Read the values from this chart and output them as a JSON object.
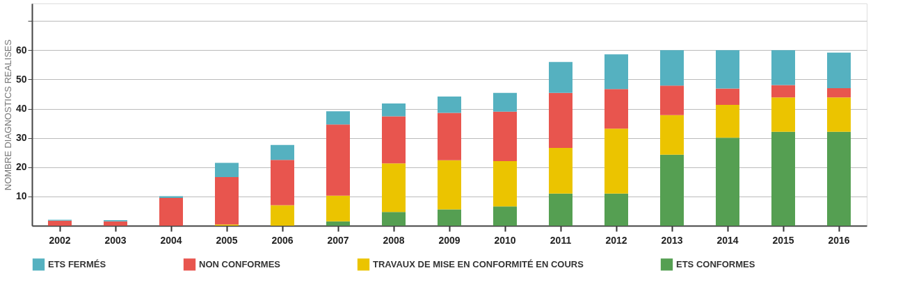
{
  "chart_data": {
    "type": "bar",
    "stacked": true,
    "ylabel": "NOMBRE DIAGNOSTICS REALISES",
    "categories": [
      "2002",
      "2003",
      "2004",
      "2005",
      "2006",
      "2007",
      "2008",
      "2009",
      "2010",
      "2011",
      "2012",
      "2013",
      "2014",
      "2015",
      "2016"
    ],
    "series": [
      {
        "name": "ETS CONFORMES",
        "color": "#559f52",
        "values": [
          0,
          0,
          0,
          0,
          0,
          1.5,
          4.7,
          5.6,
          6.6,
          11,
          11,
          24.3,
          30.1,
          32.1,
          32.1
        ]
      },
      {
        "name": "TRAVAUX DE MISE EN CONFORMITÉ EN COURS",
        "color": "#ebc400",
        "values": [
          0,
          0,
          0,
          0.4,
          7,
          8.8,
          16.6,
          16.8,
          15.5,
          15.6,
          22.2,
          13.5,
          11.2,
          11.8,
          11.8
        ]
      },
      {
        "name": "NON CONFORMES",
        "color": "#e8554e",
        "values": [
          1.7,
          1.5,
          9.5,
          16.2,
          15.5,
          24.3,
          16.1,
          16.2,
          16.9,
          18.8,
          13.5,
          10.1,
          5.6,
          4.2,
          3.1
        ]
      },
      {
        "name": "ETS FERMÉS",
        "color": "#55b1c0",
        "values": [
          0.3,
          0.4,
          0.6,
          4.9,
          5.1,
          4.5,
          4.4,
          5.6,
          6.4,
          10.6,
          11.9,
          12.1,
          13.1,
          11.9,
          12.2
        ]
      }
    ],
    "ylim": [
      0,
      76
    ],
    "yticks": [
      10,
      20,
      30,
      40,
      50,
      60,
      {
        "value": 70,
        "label": null
      }
    ],
    "grid": "y",
    "legend": "bottom"
  }
}
